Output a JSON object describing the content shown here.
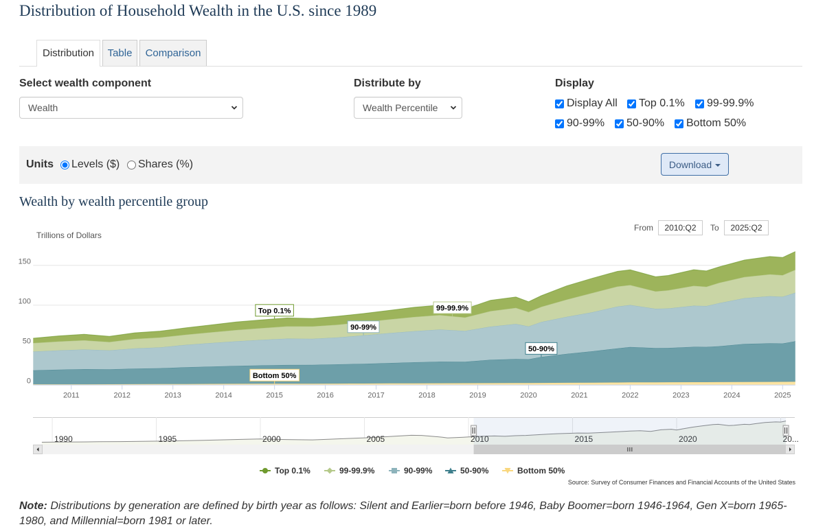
{
  "page": {
    "title": "Distribution of Household Wealth in the U.S. since 1989"
  },
  "tabs": [
    {
      "label": "Distribution",
      "active": true
    },
    {
      "label": "Table",
      "active": false
    },
    {
      "label": "Comparison",
      "active": false
    }
  ],
  "controls": {
    "component": {
      "label": "Select wealth component",
      "value": "Wealth"
    },
    "distribute": {
      "label": "Distribute by",
      "value": "Wealth Percentile"
    },
    "display": {
      "label": "Display",
      "options": [
        {
          "label": "Display All",
          "checked": true
        },
        {
          "label": "Top 0.1%",
          "checked": true
        },
        {
          "label": "99-99.9%",
          "checked": true
        },
        {
          "label": "90-99%",
          "checked": true
        },
        {
          "label": "50-90%",
          "checked": true
        },
        {
          "label": "Bottom 50%",
          "checked": true
        }
      ]
    }
  },
  "units": {
    "label": "Units",
    "options": [
      {
        "label": "Levels ($)",
        "checked": true
      },
      {
        "label": "Shares (%)",
        "checked": false
      }
    ]
  },
  "download": {
    "label": "Download"
  },
  "chart_header": {
    "title": "Wealth by wealth percentile group",
    "from_label": "From",
    "from_value": "2010:Q2",
    "to_label": "To",
    "to_value": "2025:Q2"
  },
  "chart_data": {
    "type": "area",
    "stacked": true,
    "stack_order": "last series at bottom",
    "title": "Wealth by wealth percentile group",
    "ylabel": "Trillions of Dollars",
    "xlabel": "",
    "ylim": [
      0,
      170
    ],
    "yticks": [
      0,
      50,
      100,
      150
    ],
    "xticks": [
      2011,
      2012,
      2013,
      2014,
      2015,
      2016,
      2017,
      2018,
      2019,
      2020,
      2021,
      2022,
      2023,
      2024,
      2025
    ],
    "grid": "horizontal",
    "legend_position": "bottom",
    "x": [
      "2010:Q2",
      "2010:Q4",
      "2011:Q2",
      "2011:Q4",
      "2012:Q2",
      "2012:Q4",
      "2013:Q2",
      "2013:Q4",
      "2014:Q2",
      "2014:Q4",
      "2015:Q2",
      "2015:Q4",
      "2016:Q2",
      "2016:Q4",
      "2017:Q2",
      "2017:Q4",
      "2018:Q2",
      "2018:Q4",
      "2019:Q2",
      "2019:Q4",
      "2020:Q1",
      "2020:Q2",
      "2020:Q4",
      "2021:Q2",
      "2021:Q4",
      "2022:Q1",
      "2022:Q3",
      "2022:Q4",
      "2023:Q2",
      "2023:Q3",
      "2023:Q4",
      "2024:Q2",
      "2024:Q4",
      "2025:Q1",
      "2025:Q2"
    ],
    "series": [
      {
        "name": "Top 0.1%",
        "marker": "circle",
        "color": "#6f9a2e",
        "fill": "#9db45b",
        "values": [
          6.1,
          7.1,
          7.6,
          7.2,
          7.7,
          8.0,
          8.6,
          9.3,
          10.2,
          10.4,
          10.5,
          10.0,
          10.6,
          10.8,
          11.3,
          12.1,
          12.4,
          10.8,
          13.6,
          13.7,
          12.8,
          14.0,
          17.2,
          18.4,
          19.0,
          19.1,
          18.4,
          18.6,
          20.3,
          19.9,
          20.1,
          21.3,
          22.4,
          22.2,
          22.9
        ]
      },
      {
        "name": "99-99.9%",
        "marker": "diamond",
        "color": "#b5c98a",
        "fill": "#c9d5a5",
        "values": [
          10.7,
          11.0,
          11.6,
          10.4,
          11.9,
          12.3,
          12.7,
          13.4,
          14.1,
          14.6,
          15.5,
          15.4,
          16.0,
          16.6,
          17.2,
          17.8,
          18.2,
          16.8,
          19.4,
          20.1,
          18.1,
          18.9,
          21.6,
          24.2,
          25.1,
          25.0,
          21.8,
          22.7,
          24.9,
          24.1,
          25.3,
          26.5,
          27.3,
          27.1,
          28.7
        ]
      },
      {
        "name": "90-99%",
        "marker": "square",
        "color": "#8db3bb",
        "fill": "#adc8ce",
        "values": [
          23.5,
          24.2,
          24.6,
          23.9,
          25.3,
          26.2,
          28.2,
          29.6,
          30.9,
          32.1,
          33.1,
          32.8,
          33.8,
          35.7,
          37.6,
          39.1,
          40.3,
          38.8,
          41.7,
          44.1,
          41.3,
          44.1,
          46.5,
          49.0,
          52.7,
          52.8,
          49.4,
          49.7,
          51.7,
          51.4,
          54.2,
          57.6,
          59.3,
          58.7,
          61.0
        ]
      },
      {
        "name": "50-90%",
        "marker": "triangle",
        "color": "#3e7f8c",
        "fill": "#6d9fa9",
        "values": [
          17.6,
          18.5,
          19.1,
          18.7,
          19.6,
          20.0,
          21.0,
          21.8,
          22.6,
          23.1,
          23.5,
          23.7,
          24.2,
          24.8,
          25.6,
          26.5,
          27.2,
          26.9,
          29.3,
          30.2,
          29.9,
          32.6,
          36.4,
          39.4,
          42.8,
          44.5,
          43.0,
          43.1,
          44.4,
          44.3,
          45.1,
          47.8,
          48.5,
          48.2,
          50.9
        ]
      },
      {
        "name": "Bottom 50%",
        "marker": "triangle-down",
        "color": "#f9d77e",
        "fill": "#fce4a2",
        "values": [
          0.5,
          0.5,
          0.5,
          0.6,
          0.7,
          0.8,
          0.9,
          1.0,
          1.1,
          1.2,
          1.3,
          1.3,
          1.4,
          1.5,
          1.6,
          1.7,
          1.8,
          1.9,
          2.0,
          2.1,
          2.1,
          2.2,
          2.4,
          2.6,
          2.8,
          2.9,
          3.0,
          3.1,
          3.2,
          3.2,
          3.3,
          3.4,
          3.5,
          3.6,
          3.7
        ]
      }
    ],
    "data_labels": [
      {
        "series": "Top 0.1%",
        "text": "Top 0.1%",
        "at": "2015:Q1"
      },
      {
        "series": "99-99.9%",
        "text": "99-99.9%",
        "at": "2018:Q3"
      },
      {
        "series": "90-99%",
        "text": "90-99%",
        "at": "2016:Q4"
      },
      {
        "series": "50-90%",
        "text": "50-90%",
        "at": "2020:Q2"
      },
      {
        "series": "Bottom 50%",
        "text": "Bottom 50%",
        "at": "2015:Q1"
      }
    ],
    "navigator": {
      "series": "Total",
      "ylim": [
        0,
        170
      ],
      "xticks": [
        1990,
        1995,
        2000,
        2005,
        2010,
        2015,
        2020,
        2025
      ],
      "xtick_labels": [
        "1990",
        "1995",
        "2000",
        "2005",
        "2010",
        "2015",
        "2020",
        "20..."
      ],
      "selected": [
        "2010:Q2",
        "2025:Q2"
      ],
      "x": [
        "1989:Q3",
        "1990:Q2",
        "1991:Q2",
        "1992:Q2",
        "1993:Q2",
        "1994:Q2",
        "1995:Q2",
        "1996:Q2",
        "1997:Q2",
        "1998:Q2",
        "1999:Q2",
        "2000:Q1",
        "2001:Q2",
        "2002:Q3",
        "2003:Q2",
        "2004:Q2",
        "2005:Q2",
        "2006:Q2",
        "2007:Q2",
        "2007:Q4",
        "2008:Q4",
        "2009:Q1",
        "2009:Q4",
        "2010:Q2",
        "2010:Q4",
        "2011:Q2",
        "2011:Q4",
        "2012:Q2",
        "2012:Q4",
        "2013:Q2",
        "2013:Q4",
        "2014:Q2",
        "2014:Q4",
        "2015:Q2",
        "2015:Q4",
        "2016:Q2",
        "2016:Q4",
        "2017:Q2",
        "2017:Q4",
        "2018:Q2",
        "2018:Q4",
        "2019:Q2",
        "2019:Q4",
        "2020:Q1",
        "2020:Q2",
        "2020:Q4",
        "2021:Q2",
        "2021:Q4",
        "2022:Q1",
        "2022:Q3",
        "2022:Q4",
        "2023:Q2",
        "2023:Q3",
        "2023:Q4",
        "2024:Q2",
        "2024:Q4",
        "2025:Q1",
        "2025:Q2"
      ],
      "values": [
        20.0,
        21.0,
        22.0,
        23.5,
        24.5,
        26.0,
        27.5,
        30.0,
        33.0,
        36.5,
        40.0,
        42.5,
        38.5,
        36.0,
        40.0,
        46.0,
        51.5,
        60.0,
        68.0,
        67.0,
        55.0,
        49.5,
        55.0,
        58.4,
        61.3,
        63.4,
        60.8,
        65.2,
        67.3,
        71.4,
        75.1,
        78.9,
        81.4,
        83.9,
        83.2,
        86.0,
        89.4,
        93.3,
        97.2,
        99.9,
        95.2,
        106.0,
        110.2,
        104.2,
        111.8,
        124.1,
        133.6,
        142.4,
        144.3,
        135.6,
        137.2,
        144.5,
        142.9,
        148.0,
        156.6,
        161.0,
        159.8,
        167.2
      ]
    },
    "source": "Source: Survey of Consumer Finances and Financial Accounts of the United States"
  },
  "note": {
    "label": "Note:",
    "text": " Distributions by generation are defined by birth year as follows: Silent and Earlier=born before 1946, Baby Boomer=born 1946-1964, Gen X=born 1965-1980, and Millennial=born 1981 or later."
  }
}
